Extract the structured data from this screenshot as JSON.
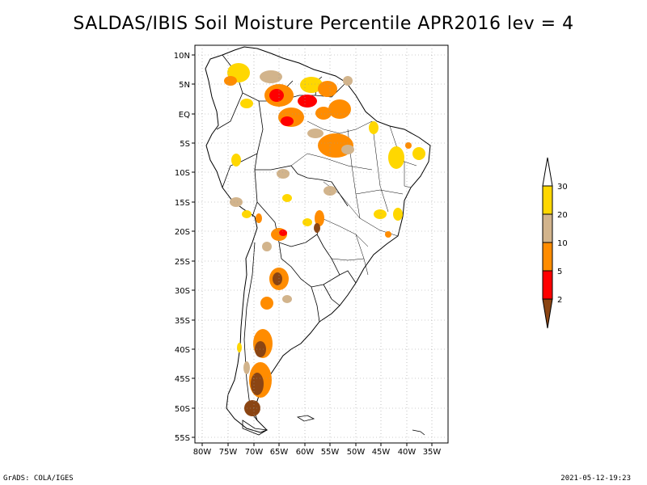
{
  "title": "SALDAS/IBIS Soil Moisture Percentile APR2016 lev = 4",
  "map": {
    "lon_range": [
      -80,
      -30
    ],
    "lat_range": [
      -56,
      12
    ],
    "lon_ticks": [
      "80W",
      "75W",
      "70W",
      "65W",
      "60W",
      "55W",
      "50W",
      "45W",
      "40W",
      "35W"
    ],
    "lat_ticks": [
      "10N",
      "5N",
      "EQ",
      "5S",
      "10S",
      "15S",
      "20S",
      "25S",
      "30S",
      "35S",
      "40S",
      "45S",
      "50S",
      "55S"
    ]
  },
  "legend": {
    "labels": [
      "30",
      "20",
      "10",
      "5",
      "2"
    ],
    "colors": {
      "above_30": "#ffffff",
      "20_30": "#ffd700",
      "10_20": "#d2b48c",
      "5_10": "#ff8c00",
      "2_5": "#ff0000",
      "below_2": "#8b4513"
    }
  },
  "footer": {
    "left": "GrADS: COLA/IGES",
    "right": "2021-05-12-19:23"
  }
}
